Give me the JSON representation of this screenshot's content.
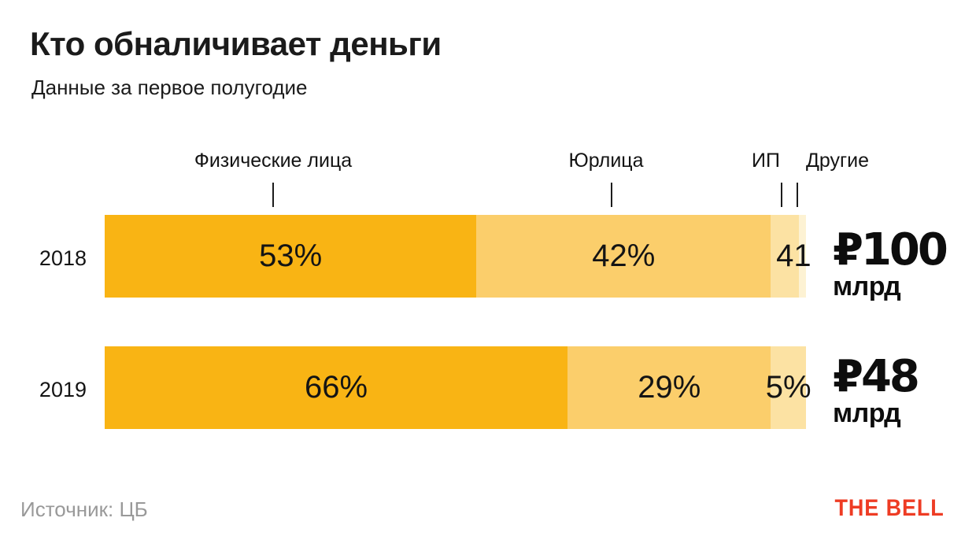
{
  "colors": {
    "background": "#ffffff",
    "text": "#161616",
    "muted_gray": "#999999",
    "brand_red": "#EE3C24",
    "tick": "#1c1c1c"
  },
  "chart_data": {
    "type": "bar",
    "variant": "horizontal-stacked",
    "title": "Кто обналичивает деньги",
    "subtitle": "Данные за первое полугодие",
    "unit": "%",
    "categories": [
      "Физические лица",
      "Юрлица",
      "ИП",
      "Другие"
    ],
    "segment_colors": [
      "#F9B414",
      "#FBCE6B",
      "#FCE2A3",
      "#FDF2D3"
    ],
    "rows": [
      {
        "year": "2018",
        "values": [
          53,
          42,
          4,
          1
        ],
        "labels": [
          "53%",
          "42%",
          "4",
          "1"
        ],
        "total": "₽100",
        "total_unit": "млрд"
      },
      {
        "year": "2019",
        "values": [
          66,
          29,
          5
        ],
        "labels": [
          "66%",
          "29%",
          "5%"
        ],
        "total": "₽48",
        "total_unit": "млрд"
      }
    ],
    "legend_position": "top",
    "grid": false,
    "source": "Источник: ЦБ",
    "brand": "THE BELL"
  }
}
